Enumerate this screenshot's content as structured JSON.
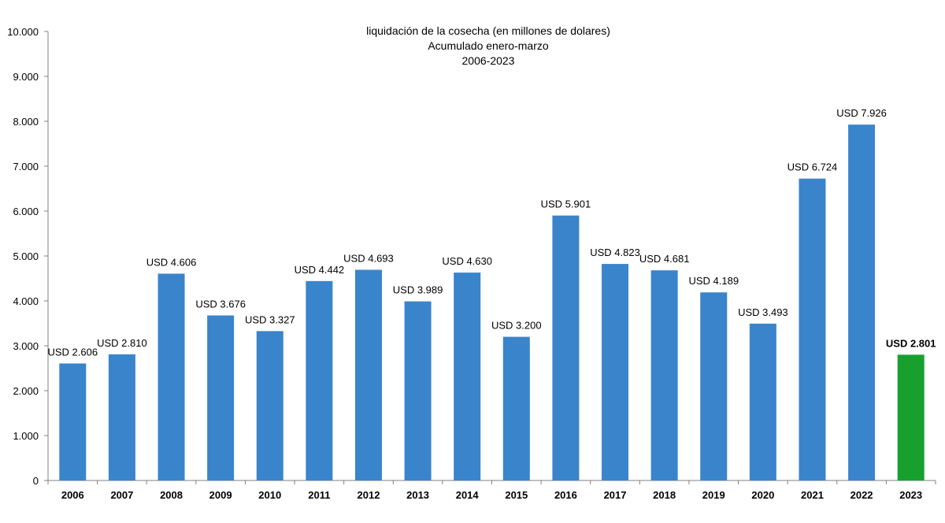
{
  "chart_data": {
    "type": "bar",
    "title": [
      "liquidación de la cosecha (en millones de dolares)",
      "Acumulado enero-marzo",
      "2006-2023"
    ],
    "xlabel": "",
    "ylabel": "",
    "ylim": [
      0,
      10000
    ],
    "yticks": [
      0,
      1000,
      2000,
      3000,
      4000,
      5000,
      6000,
      7000,
      8000,
      9000,
      10000
    ],
    "ytick_labels": [
      "0",
      "1.000",
      "2.000",
      "3.000",
      "4.000",
      "5.000",
      "6.000",
      "7.000",
      "8.000",
      "9.000",
      "10.000"
    ],
    "categories": [
      "2006",
      "2007",
      "2008",
      "2009",
      "2010",
      "2011",
      "2012",
      "2013",
      "2014",
      "2015",
      "2016",
      "2017",
      "2018",
      "2019",
      "2020",
      "2021",
      "2022",
      "2023"
    ],
    "values": [
      2606,
      2810,
      4606,
      3676,
      3327,
      4442,
      4693,
      3989,
      4630,
      3200,
      5901,
      4823,
      4681,
      4189,
      3493,
      6724,
      7926,
      2801
    ],
    "data_labels": [
      "USD 2.606",
      "USD 2.810",
      "USD 4.606",
      "USD 3.676",
      "USD 3.327",
      "USD 4.442",
      "USD 4.693",
      "USD 3.989",
      "USD 4.630",
      "USD 3.200",
      "USD 5.901",
      "USD 4.823",
      "USD 4.681",
      "USD 4.189",
      "USD 3.493",
      "USD 6.724",
      "USD 7.926",
      "USD 2.801"
    ],
    "bar_color": "#3A84CC",
    "highlight_color": "#17A02E",
    "highlight_index": 17,
    "grid": false,
    "legend": "none"
  }
}
